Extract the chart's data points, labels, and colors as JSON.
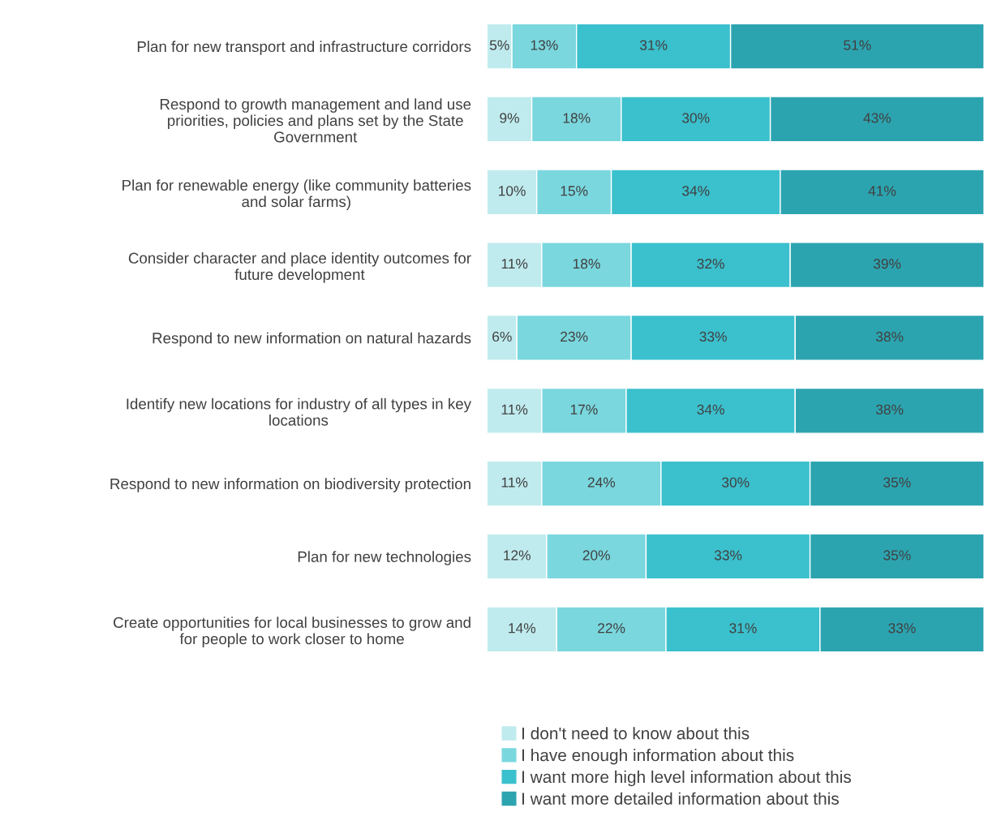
{
  "chart_data": {
    "type": "bar",
    "orientation": "horizontal",
    "stacked": true,
    "tick_labels": "y",
    "grid": false,
    "legend": "bottom",
    "categories": [
      "Plan for new transport and infrastructure corridors",
      "Respond to growth management and land use\npriorities, policies and plans set by the State\nGovernment",
      "Plan for renewable energy (like community batteries\nand solar farms)",
      "Consider character and place identity outcomes for\nfuture development",
      "Respond to new information on natural hazards",
      "Identify new locations for industry of all types in key\nlocations",
      "Respond to new information on biodiversity protection",
      "Plan for new technologies",
      "Create opportunities for local businesses to grow and\nfor people to work closer to home"
    ],
    "series": [
      {
        "name": "I don't need to know about this",
        "color": "#c0ebee",
        "values": [
          5,
          9,
          10,
          11,
          6,
          11,
          11,
          12,
          14
        ],
        "value_labels": [
          "5%",
          "9%",
          "10%",
          "11%",
          "6%",
          "11%",
          "11%",
          "12%",
          "14%"
        ]
      },
      {
        "name": "I have enough information about this",
        "color": "#7ad7de",
        "values": [
          13,
          18,
          15,
          18,
          23,
          17,
          24,
          20,
          22
        ],
        "value_labels": [
          "13%",
          "18%",
          "15%",
          "18%",
          "23%",
          "17%",
          "24%",
          "20%",
          "22%"
        ]
      },
      {
        "name": "I want more high level information about this",
        "color": "#3bc0cd",
        "values": [
          31,
          30,
          34,
          32,
          33,
          34,
          30,
          33,
          31
        ],
        "value_labels": [
          "31%",
          "30%",
          "34%",
          "32%",
          "33%",
          "34%",
          "30%",
          "33%",
          "31%"
        ]
      },
      {
        "name": "I want more detailed information about this",
        "color": "#2ca4b0",
        "values": [
          51,
          43,
          41,
          39,
          38,
          38,
          35,
          35,
          33
        ],
        "value_labels": [
          "51%",
          "43%",
          "41%",
          "39%",
          "38%",
          "38%",
          "35%",
          "35%",
          "33%"
        ]
      }
    ]
  }
}
